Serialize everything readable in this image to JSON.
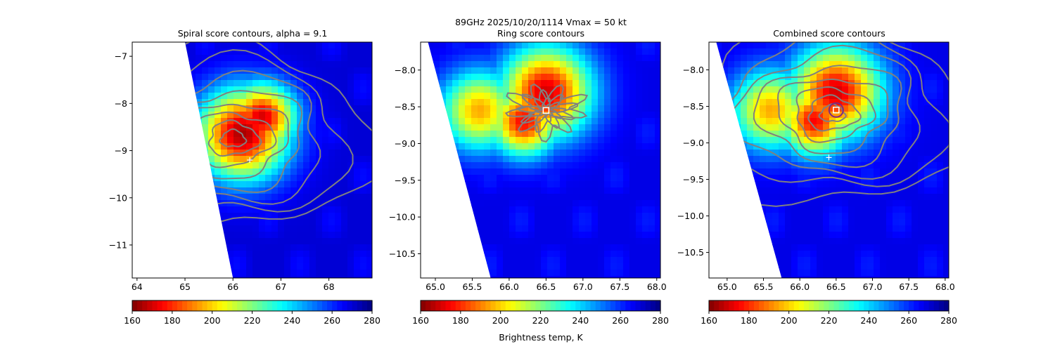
{
  "figure": {
    "suptitle_line1": "89GHz  2025/10/20/1114    Vmax = 50 kt",
    "colorbar_label": "Brightness temp, K",
    "colormap": "jet_reversed",
    "colors": {
      "background": "#ffffff",
      "contour": "#808080",
      "marker": "#ffffff",
      "circle": "#7f2a7f"
    }
  },
  "chart_data": [
    {
      "type": "heatmap",
      "title": "Spiral score contours, alpha =  9.1",
      "xlabel": "",
      "ylabel": "",
      "xlim": [
        63.9,
        68.9
      ],
      "ylim": [
        -11.7,
        -6.7
      ],
      "xticks": [
        "64",
        "65",
        "66",
        "67",
        "68"
      ],
      "yticks": [
        "−7",
        "−8",
        "−9",
        "−10",
        "−11"
      ],
      "colorbar": {
        "range": [
          160,
          280
        ],
        "ticks": [
          "160",
          "180",
          "200",
          "220",
          "240",
          "260",
          "280"
        ]
      },
      "swath_edge": [
        [
          65.0,
          -6.7
        ],
        [
          66.0,
          -11.7
        ]
      ],
      "cold_spots": [
        {
          "x": 66.2,
          "y": -8.65,
          "value": 165
        },
        {
          "x": 66.6,
          "y": -8.3,
          "value": 170
        }
      ],
      "warm_background": 270,
      "markers": [
        {
          "shape": "plus",
          "x": 66.35,
          "y": -9.2
        }
      ],
      "contour_center": [
        66.0,
        -8.75
      ]
    },
    {
      "type": "heatmap",
      "title": "Ring score contours",
      "xlabel": "Brightness temp, K",
      "ylabel": "",
      "xlim": [
        64.8,
        68.05
      ],
      "ylim": [
        -10.83,
        -7.62
      ],
      "xticks": [
        "65.0",
        "65.5",
        "66.0",
        "66.5",
        "67.0",
        "67.5",
        "68.0"
      ],
      "yticks": [
        "−8.0",
        "−8.5",
        "−9.0",
        "−9.5",
        "−10.0",
        "−10.5"
      ],
      "colorbar": {
        "range": [
          160,
          280
        ],
        "ticks": [
          "160",
          "180",
          "200",
          "220",
          "240",
          "260",
          "280"
        ]
      },
      "swath_edge": [
        [
          64.9,
          -7.62
        ],
        [
          65.75,
          -10.83
        ]
      ],
      "cold_spots": [
        {
          "x": 66.5,
          "y": -8.3,
          "value": 170
        },
        {
          "x": 66.2,
          "y": -8.7,
          "value": 175
        },
        {
          "x": 65.6,
          "y": -8.55,
          "value": 195
        }
      ],
      "warm_background": 268,
      "markers": [
        {
          "shape": "square",
          "x": 66.5,
          "y": -8.55
        }
      ]
    },
    {
      "type": "heatmap",
      "title": "Combined score contours",
      "xlabel": "",
      "ylabel": "",
      "xlim": [
        64.75,
        68.05
      ],
      "ylim": [
        -10.85,
        -7.62
      ],
      "xticks": [
        "65.0",
        "65.5",
        "66.0",
        "66.5",
        "67.0",
        "67.5",
        "68.0"
      ],
      "yticks": [
        "−8.0",
        "−8.5",
        "−9.0",
        "−9.5",
        "−10.0",
        "−10.5"
      ],
      "colorbar": {
        "range": [
          160,
          280
        ],
        "ticks": [
          "160",
          "180",
          "200",
          "220",
          "240",
          "260",
          "280"
        ]
      },
      "swath_edge": [
        [
          64.85,
          -7.62
        ],
        [
          65.75,
          -10.85
        ]
      ],
      "cold_spots": [
        {
          "x": 66.5,
          "y": -8.3,
          "value": 170
        },
        {
          "x": 66.2,
          "y": -8.7,
          "value": 175
        },
        {
          "x": 65.6,
          "y": -8.55,
          "value": 195
        }
      ],
      "warm_background": 268,
      "markers": [
        {
          "shape": "plus",
          "x": 66.4,
          "y": -9.2
        },
        {
          "shape": "square",
          "x": 66.5,
          "y": -8.55
        },
        {
          "shape": "circle",
          "x": 66.5,
          "y": -8.55
        }
      ],
      "contour_center": [
        66.45,
        -8.6
      ]
    }
  ]
}
